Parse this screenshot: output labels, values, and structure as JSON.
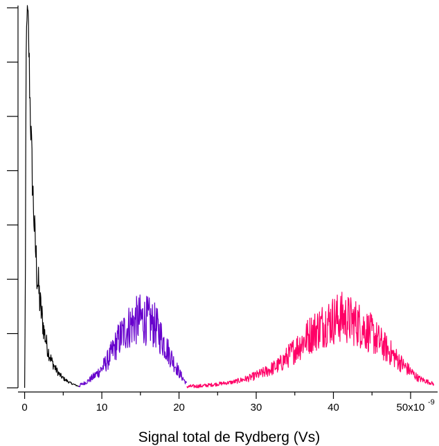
{
  "chart_data": {
    "type": "line",
    "title": "",
    "xlabel": "Signal total de Rydberg (Vs)",
    "ylabel": "",
    "x_tick_labels": [
      "0",
      "10",
      "20",
      "30",
      "40",
      "50x10"
    ],
    "x_exponent": "-9",
    "xlim": [
      -0.5,
      53.5
    ],
    "ylim": [
      0,
      1
    ],
    "y_ticks_unlabeled": [
      0,
      0.142,
      0.284,
      0.426,
      0.568,
      0.71,
      0.852,
      0.994
    ],
    "grid": false,
    "legend": "none",
    "series": [
      {
        "color": "#000000",
        "x": [
          0,
          0.1,
          0.2,
          0.3,
          0.5,
          0.7,
          1.0,
          1.3,
          1.6,
          2.0,
          2.5,
          3.0,
          3.5,
          4.0,
          4.5,
          5.0,
          5.5,
          6.0,
          6.5,
          7.0
        ],
        "values": [
          0.0,
          0.3,
          0.85,
          1.0,
          0.93,
          0.75,
          0.55,
          0.4,
          0.3,
          0.22,
          0.15,
          0.1,
          0.07,
          0.05,
          0.035,
          0.025,
          0.018,
          0.012,
          0.008,
          0.004
        ]
      },
      {
        "color": "#6600cc",
        "x": [
          7,
          8,
          9,
          10,
          11,
          12,
          13,
          14,
          15,
          16,
          17,
          18,
          19,
          20,
          21
        ],
        "values": [
          0.005,
          0.015,
          0.03,
          0.05,
          0.08,
          0.12,
          0.15,
          0.17,
          0.18,
          0.175,
          0.16,
          0.12,
          0.08,
          0.04,
          0.01
        ]
      },
      {
        "color": "#ff0066",
        "x": [
          21,
          23,
          25,
          27,
          29,
          31,
          33,
          35,
          37,
          39,
          41,
          43,
          45,
          47,
          49,
          51,
          53
        ],
        "values": [
          0.003,
          0.005,
          0.01,
          0.015,
          0.025,
          0.04,
          0.06,
          0.1,
          0.14,
          0.17,
          0.185,
          0.17,
          0.14,
          0.1,
          0.06,
          0.025,
          0.01
        ]
      }
    ]
  }
}
